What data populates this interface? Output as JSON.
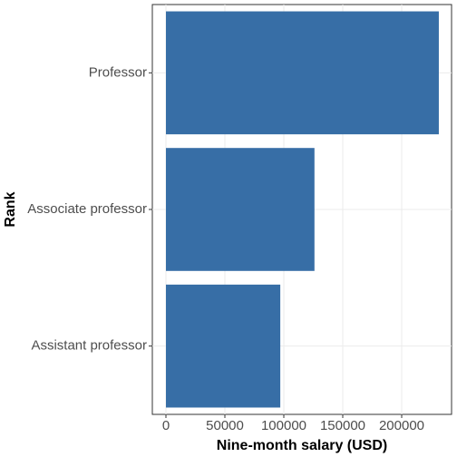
{
  "chart_data": {
    "type": "bar",
    "orientation": "horizontal",
    "x_label": "Nine-month salary (USD)",
    "y_label": "Rank",
    "categories": [
      "Professor",
      "Associate professor",
      "Assistant professor"
    ],
    "values": [
      231500,
      126000,
      97000
    ],
    "color": "#376ea6",
    "xlim": [
      -11538,
      242300
    ],
    "xticks": [
      0,
      50000,
      100000,
      150000,
      200000
    ],
    "grid": true
  }
}
